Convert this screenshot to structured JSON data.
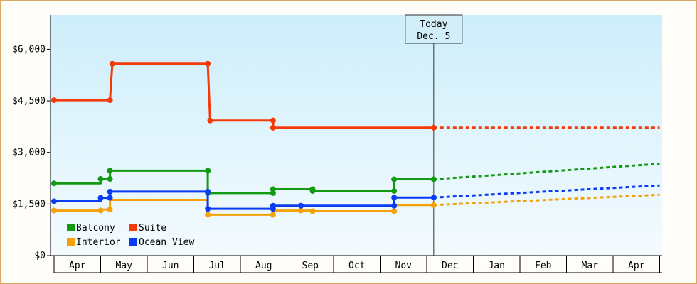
{
  "chart_data": {
    "type": "line",
    "title": "",
    "xlabel": "",
    "ylabel": "",
    "ylim": [
      0,
      7000
    ],
    "y_ticks": [
      0,
      1500,
      3000,
      4500,
      6000
    ],
    "y_tick_labels": [
      "$0",
      "$1,500",
      "$3,000",
      "$4,500",
      "$6,000"
    ],
    "month_labels": [
      "Apr",
      "May",
      "Jun",
      "Jul",
      "Aug",
      "Sep",
      "Oct",
      "Nov",
      "Dec",
      "Jan",
      "Feb",
      "Mar",
      "Apr"
    ],
    "today": {
      "line1": "Today",
      "line2": "Dec. 5",
      "x": 8.15
    },
    "grid": false,
    "legend_position": "bottom-left",
    "series": [
      {
        "name": "Balcony",
        "color": "#129a12",
        "points": [
          [
            0.0,
            2100
          ],
          [
            1.0,
            2100
          ],
          [
            1.0,
            2230
          ],
          [
            1.2,
            2230
          ],
          [
            1.2,
            2470
          ],
          [
            3.3,
            2470
          ],
          [
            3.3,
            1820
          ],
          [
            4.7,
            1820
          ],
          [
            4.7,
            1930
          ],
          [
            5.55,
            1930
          ],
          [
            5.55,
            1880
          ],
          [
            7.3,
            1880
          ],
          [
            7.3,
            2220
          ],
          [
            8.15,
            2220
          ]
        ],
        "markers": [
          [
            0.0,
            2100
          ],
          [
            1.0,
            2230
          ],
          [
            1.2,
            2230
          ],
          [
            1.2,
            2470
          ],
          [
            3.3,
            2470
          ],
          [
            3.3,
            1820
          ],
          [
            4.7,
            1820
          ],
          [
            4.7,
            1930
          ],
          [
            5.55,
            1930
          ],
          [
            5.55,
            1880
          ],
          [
            7.3,
            1880
          ],
          [
            7.3,
            2220
          ],
          [
            8.15,
            2220
          ]
        ],
        "projection": [
          [
            8.15,
            2220
          ],
          [
            13.0,
            2670
          ]
        ]
      },
      {
        "name": "Suite",
        "color": "#f53a0a",
        "points": [
          [
            0.0,
            4520
          ],
          [
            1.2,
            4520
          ],
          [
            1.25,
            5580
          ],
          [
            3.3,
            5580
          ],
          [
            3.35,
            3930
          ],
          [
            4.7,
            3930
          ],
          [
            4.7,
            3720
          ],
          [
            8.15,
            3720
          ]
        ],
        "markers": [
          [
            0.0,
            4520
          ],
          [
            1.2,
            4520
          ],
          [
            1.25,
            5580
          ],
          [
            3.3,
            5580
          ],
          [
            3.35,
            3930
          ],
          [
            4.7,
            3930
          ],
          [
            4.7,
            3720
          ],
          [
            8.15,
            3720
          ]
        ],
        "projection": [
          [
            8.15,
            3720
          ],
          [
            13.0,
            3720
          ]
        ]
      },
      {
        "name": "Interior",
        "color": "#f5a20a",
        "points": [
          [
            0.0,
            1310
          ],
          [
            1.0,
            1310
          ],
          [
            1.0,
            1340
          ],
          [
            1.2,
            1340
          ],
          [
            1.2,
            1620
          ],
          [
            3.3,
            1620
          ],
          [
            3.3,
            1190
          ],
          [
            4.7,
            1190
          ],
          [
            4.7,
            1310
          ],
          [
            5.55,
            1310
          ],
          [
            5.55,
            1290
          ],
          [
            7.3,
            1290
          ],
          [
            7.3,
            1470
          ],
          [
            8.15,
            1470
          ]
        ],
        "markers": [
          [
            0.0,
            1310
          ],
          [
            1.0,
            1310
          ],
          [
            1.2,
            1340
          ],
          [
            3.3,
            1190
          ],
          [
            4.7,
            1190
          ],
          [
            5.3,
            1310
          ],
          [
            5.55,
            1290
          ],
          [
            7.3,
            1290
          ],
          [
            8.15,
            1470
          ]
        ],
        "projection": [
          [
            8.15,
            1470
          ],
          [
            13.0,
            1770
          ]
        ]
      },
      {
        "name": "Ocean View",
        "color": "#0a3cf5",
        "points": [
          [
            0.0,
            1580
          ],
          [
            1.0,
            1580
          ],
          [
            1.0,
            1680
          ],
          [
            1.2,
            1680
          ],
          [
            1.2,
            1860
          ],
          [
            3.3,
            1860
          ],
          [
            3.3,
            1360
          ],
          [
            4.7,
            1360
          ],
          [
            4.7,
            1450
          ],
          [
            7.3,
            1450
          ],
          [
            7.3,
            1690
          ],
          [
            8.15,
            1690
          ]
        ],
        "markers": [
          [
            0.0,
            1580
          ],
          [
            1.0,
            1680
          ],
          [
            1.2,
            1680
          ],
          [
            1.2,
            1860
          ],
          [
            3.3,
            1860
          ],
          [
            3.3,
            1360
          ],
          [
            4.7,
            1360
          ],
          [
            4.7,
            1450
          ],
          [
            5.3,
            1450
          ],
          [
            7.3,
            1450
          ],
          [
            7.3,
            1690
          ],
          [
            8.15,
            1690
          ]
        ],
        "projection": [
          [
            8.15,
            1690
          ],
          [
            13.0,
            2040
          ]
        ]
      }
    ]
  },
  "colors": {
    "background_top": "#cdeefb",
    "background_bottom": "#f4fbfe",
    "axis": "#000000",
    "frame": "#d9a860"
  }
}
